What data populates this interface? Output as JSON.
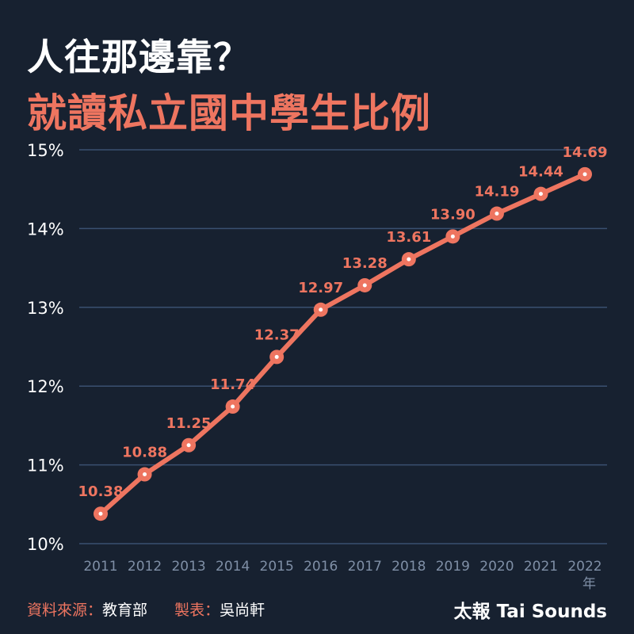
{
  "chart_data": {
    "type": "line",
    "title": "人往那邊靠？",
    "subtitle": "就讀私立國中學生比例",
    "xlabel": "年",
    "ylabel": "",
    "x": [
      "2011",
      "2012",
      "2013",
      "2014",
      "2015",
      "2016",
      "2017",
      "2018",
      "2019",
      "2020",
      "2021",
      "2022"
    ],
    "values": [
      10.38,
      10.88,
      11.25,
      11.74,
      12.37,
      12.97,
      13.28,
      13.61,
      13.9,
      14.19,
      14.44,
      14.69
    ],
    "data_labels": [
      "10.38",
      "10.88",
      "11.25",
      "11.74",
      "12.37",
      "12.97",
      "13.28",
      "13.61",
      "13.90",
      "14.19",
      "14.44",
      "14.69"
    ],
    "yticks": [
      "10%",
      "11%",
      "12%",
      "13%",
      "14%",
      "15%"
    ],
    "ylim": [
      10,
      15
    ],
    "grid": true,
    "colors": {
      "line": "#ee7560",
      "background": "#172130",
      "grid": "#3a5070",
      "xtick": "#7f8fa6"
    }
  },
  "footer": {
    "source_label": "資料來源",
    "source_value": "教育部",
    "maker_label": "製表",
    "maker_value": "吳尚軒",
    "separator": "：",
    "brand": "太報 Tai Sounds"
  }
}
